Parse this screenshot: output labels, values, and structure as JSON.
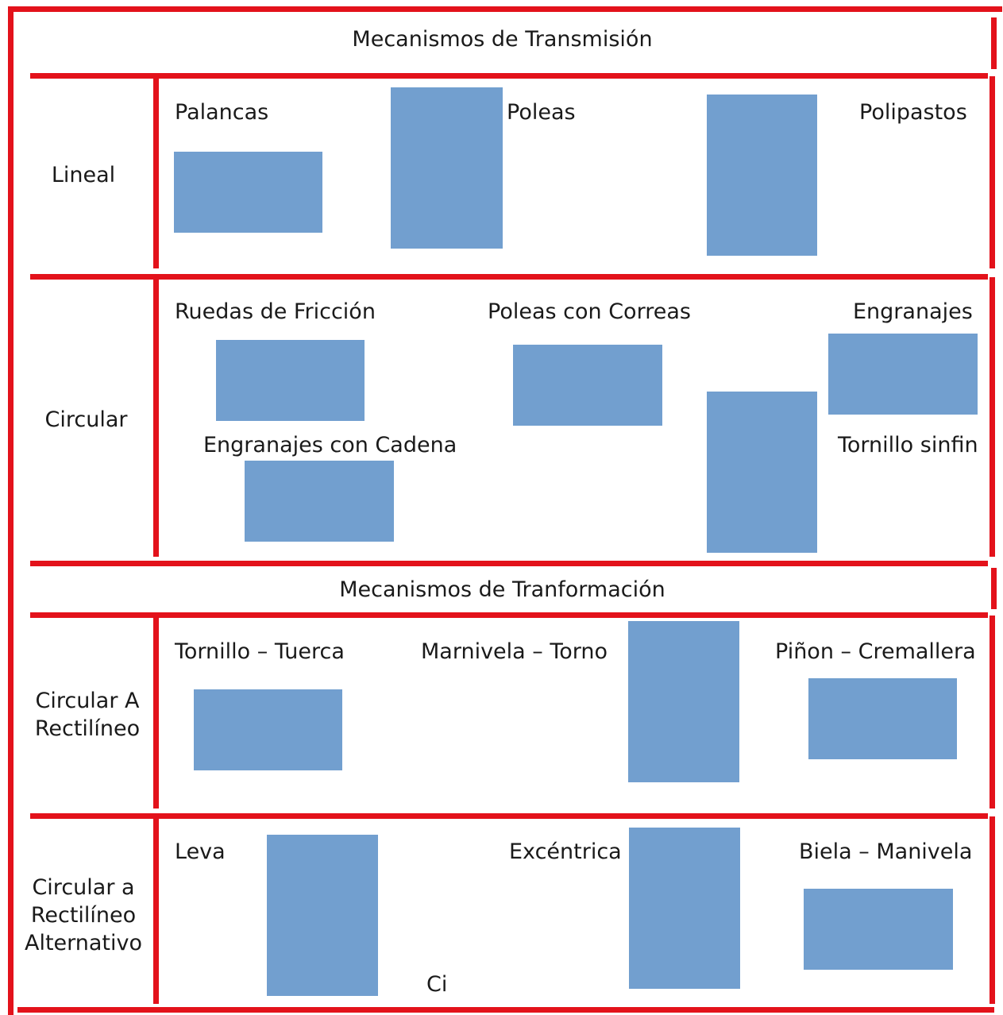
{
  "colors": {
    "border": "#e3121b",
    "placeholder": "#729fcf",
    "text": "#1a1a1a"
  },
  "sections": {
    "transmision_title": "Mecanismos de Transmisión",
    "transformacion_title": "Mecanismos de Tranformación"
  },
  "rows": {
    "lineal": {
      "label": "Lineal",
      "items": [
        "Palancas",
        "Poleas",
        "Polipastos"
      ]
    },
    "circular": {
      "label": "Circular",
      "items": [
        "Ruedas de Fricción",
        "Poleas con Correas",
        "Engranajes",
        "Engranajes con Cadena",
        "Tornillo  sinfin"
      ]
    },
    "circ_rect": {
      "label": "Circular A\nRectilíneo",
      "items": [
        "Tornillo – Tuerca",
        "Marnivela – Torno",
        "Piñon – Cremallera"
      ]
    },
    "circ_rect_alt": {
      "label": "Circular a\nRectilíneo\nAlternativo",
      "items": [
        "Leva",
        "Excéntrica",
        "Biela – Manivela",
        "Ci"
      ]
    }
  }
}
